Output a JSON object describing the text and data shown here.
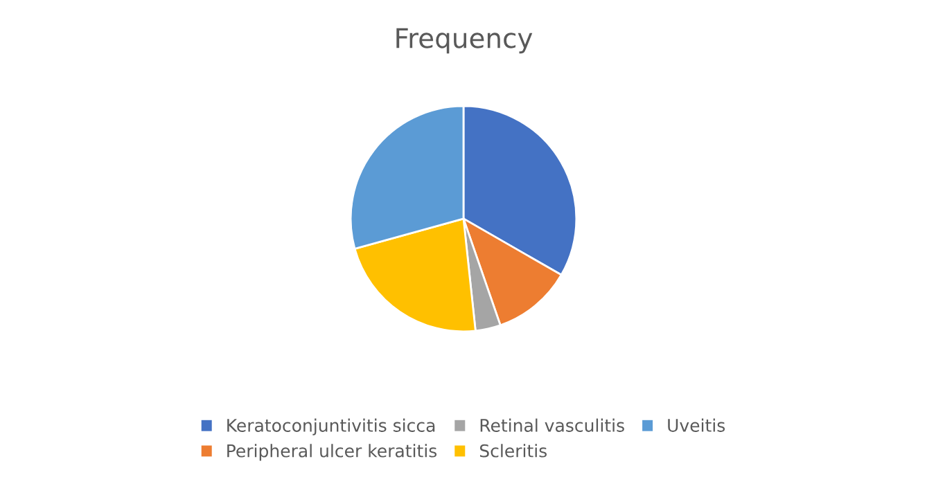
{
  "chart_data": {
    "type": "pie",
    "title": "Frequency",
    "categories": [
      "Keratoconjuntivitis sicca",
      "Peripheral ulcer keratitis",
      "Retinal vasculitis",
      "Scleritis",
      "Uveitis"
    ],
    "values": [
      33.3,
      11.4,
      3.6,
      22.4,
      29.3
    ],
    "colors": [
      "#4472c4",
      "#ed7d31",
      "#a5a5a5",
      "#ffc000",
      "#5b9bd5"
    ],
    "legend": "bottom"
  }
}
